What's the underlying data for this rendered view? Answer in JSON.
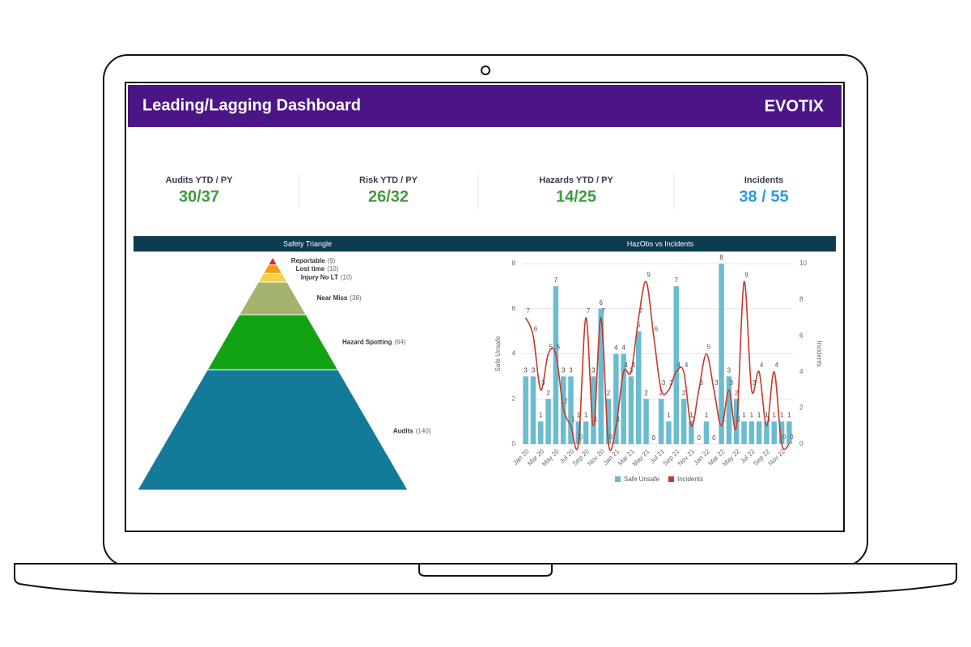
{
  "header": {
    "title": "Leading/Lagging Dashboard",
    "logo": "EVOTIX"
  },
  "kpis": [
    {
      "label": "Audits YTD / PY",
      "value": "30/37",
      "color": "#3f9a3f"
    },
    {
      "label": "Risk YTD / PY",
      "value": "26/32",
      "color": "#3f9a3f"
    },
    {
      "label": "Hazards YTD / PY",
      "value": "14/25",
      "color": "#3f9a3f"
    },
    {
      "label": "Incidents",
      "value": "38 / 55",
      "color": "#2a9be0"
    }
  ],
  "chart_data": [
    {
      "type": "pyramid",
      "title": "Safety Triangle",
      "categories": [
        "Reportable",
        "Lost time",
        "Injury No LT",
        "Near Miss",
        "Hazard Spotting",
        "Audits"
      ],
      "values": [
        9,
        10,
        10,
        38,
        64,
        140
      ],
      "value_labels": [
        "(9)",
        "(10)",
        "(10)",
        "(38)",
        "(64)",
        "(140)"
      ],
      "colors": [
        "#e8202a",
        "#f39c12",
        "#f7d04a",
        "#a4b46e",
        "#12a312",
        "#147a99"
      ]
    },
    {
      "type": "bar-line",
      "title": "HazObs vs Incidents",
      "categories": [
        "Jan 20",
        null,
        "Mar 20",
        null,
        "May 20",
        null,
        "Jul 20",
        null,
        "Sep 20",
        null,
        "Nov 20",
        null,
        "Jan 21",
        null,
        "Mar 21",
        null,
        "May 21",
        null,
        "Jul 21",
        null,
        "Sep 21",
        null,
        "Nov 21",
        null,
        "Jan 22",
        null,
        "Mar 22",
        null,
        "May 22",
        null,
        "Jul 22",
        null,
        "Sep 22",
        null,
        "Nov 22",
        null
      ],
      "y_label": "Safe Unsafe",
      "y2_label": "Incidents",
      "ylim": [
        0,
        8
      ],
      "yticks": [
        0,
        2,
        4,
        6,
        8
      ],
      "y2lim": [
        0,
        10
      ],
      "y2ticks": [
        0,
        2,
        4,
        6,
        8,
        10
      ],
      "grid": true,
      "series": [
        {
          "name": "Safe Unsafe",
          "type": "bar",
          "color": "#6bbcd1",
          "values": [
            3,
            3,
            1,
            2,
            7,
            3,
            3,
            1,
            1,
            3,
            6,
            2,
            4,
            4,
            3,
            5,
            2,
            0,
            2,
            1,
            7,
            2,
            1,
            0,
            1,
            0,
            8,
            3,
            2,
            1,
            1,
            1,
            1,
            1,
            1,
            1
          ]
        },
        {
          "name": "Incidents",
          "type": "line",
          "axis": "y2",
          "color": "#c8392b",
          "values": [
            7,
            6,
            3,
            5,
            5,
            2,
            1,
            0,
            7,
            1,
            7,
            0,
            1,
            4,
            4,
            7,
            9,
            6,
            3,
            3,
            4,
            4,
            1,
            3,
            5,
            3,
            1,
            3,
            1,
            9,
            3,
            4,
            1,
            4,
            0,
            0
          ]
        }
      ]
    }
  ]
}
